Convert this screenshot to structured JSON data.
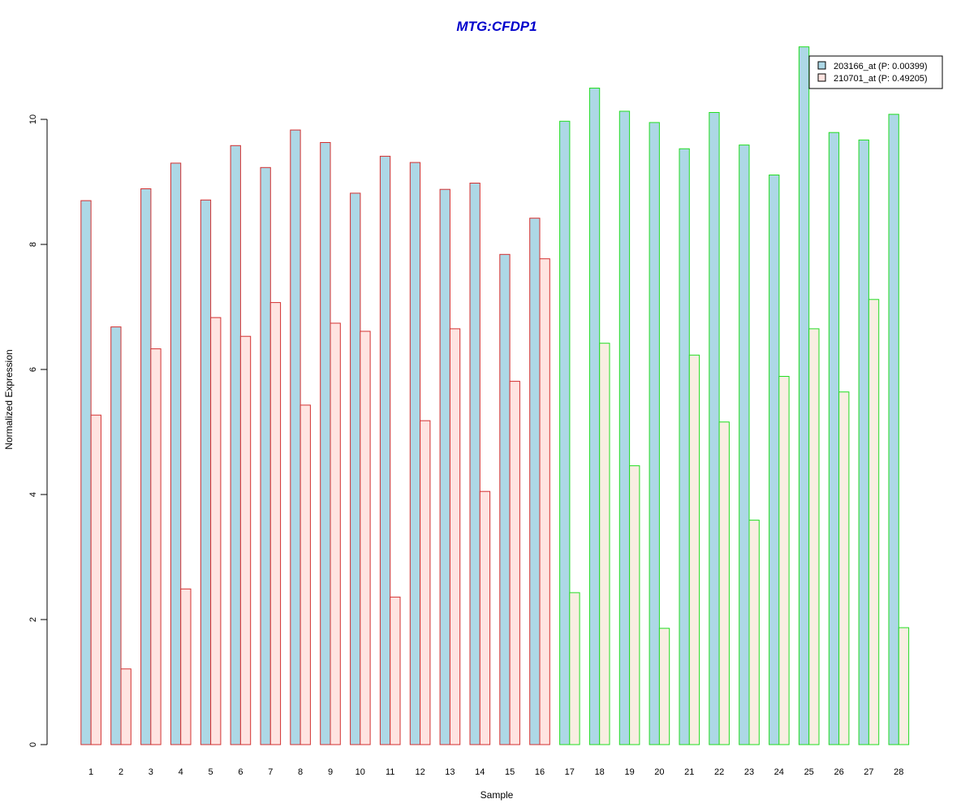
{
  "chart_data": {
    "type": "bar",
    "title": "MTG:CFDP1",
    "xlabel": "Sample",
    "ylabel": "Normalized Expression",
    "ylim": [
      0,
      11.2
    ],
    "yticks": [
      "0",
      "2",
      "4",
      "6",
      "8",
      "10"
    ],
    "categories": [
      "1",
      "2",
      "3",
      "4",
      "5",
      "6",
      "7",
      "8",
      "9",
      "10",
      "11",
      "12",
      "13",
      "14",
      "15",
      "16",
      "17",
      "18",
      "19",
      "20",
      "21",
      "22",
      "23",
      "24",
      "25",
      "26",
      "27",
      "28"
    ],
    "group_outline": [
      "#d32f2f",
      "#d32f2f",
      "#d32f2f",
      "#d32f2f",
      "#d32f2f",
      "#d32f2f",
      "#d32f2f",
      "#d32f2f",
      "#d32f2f",
      "#d32f2f",
      "#d32f2f",
      "#d32f2f",
      "#d32f2f",
      "#d32f2f",
      "#d32f2f",
      "#d32f2f",
      "#22dd22",
      "#22dd22",
      "#22dd22",
      "#22dd22",
      "#22dd22",
      "#22dd22",
      "#22dd22",
      "#22dd22",
      "#22dd22",
      "#22dd22",
      "#22dd22",
      "#22dd22"
    ],
    "series": [
      {
        "name": "203166_at (P: 0.00399)",
        "color": "#add8e6",
        "values": [
          8.7,
          6.68,
          8.89,
          9.3,
          8.71,
          9.58,
          9.23,
          9.83,
          9.63,
          8.82,
          9.41,
          9.31,
          8.88,
          8.98,
          7.84,
          8.42,
          9.97,
          10.5,
          10.13,
          9.95,
          9.53,
          10.11,
          9.59,
          9.11,
          11.16,
          9.79,
          9.67,
          10.08
        ]
      },
      {
        "name": "210701_at (P: 0.49205)",
        "color": "#ffe4e1",
        "alt_color": "#f9eee2",
        "values": [
          5.27,
          1.21,
          6.33,
          2.49,
          6.83,
          6.53,
          7.07,
          5.43,
          6.74,
          6.61,
          2.36,
          5.18,
          6.65,
          4.05,
          5.81,
          7.77,
          2.43,
          6.42,
          4.46,
          1.86,
          6.23,
          5.16,
          3.59,
          5.89,
          6.65,
          5.64,
          7.12,
          1.87
        ]
      }
    ],
    "title_color": "#0000cc",
    "legend_position": "top-right"
  }
}
